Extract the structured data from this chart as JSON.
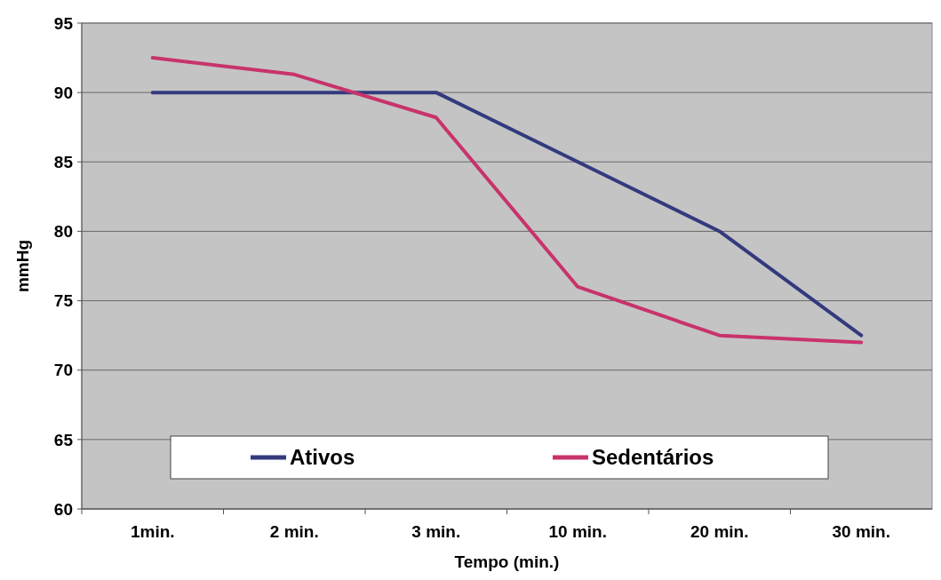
{
  "chart_data": {
    "type": "line",
    "xlabel": "Tempo (min.)",
    "ylabel": "mmHg",
    "categories": [
      "1min.",
      "2 min.",
      "3 min.",
      "10 min.",
      "20 min.",
      "30 min."
    ],
    "series": [
      {
        "name": "Ativos",
        "color": "#333a7e",
        "values": [
          90,
          90,
          90,
          85,
          80,
          72.5
        ]
      },
      {
        "name": "Sedentários",
        "color": "#c8336c",
        "values": [
          92.5,
          91.3,
          88.2,
          76,
          72.5,
          72
        ]
      }
    ],
    "ylim": [
      60,
      95
    ],
    "yticks": [
      60,
      65,
      70,
      75,
      80,
      85,
      90,
      95
    ],
    "grid": "y",
    "legend": "bottom",
    "marker": "none",
    "line_style": "solid"
  }
}
